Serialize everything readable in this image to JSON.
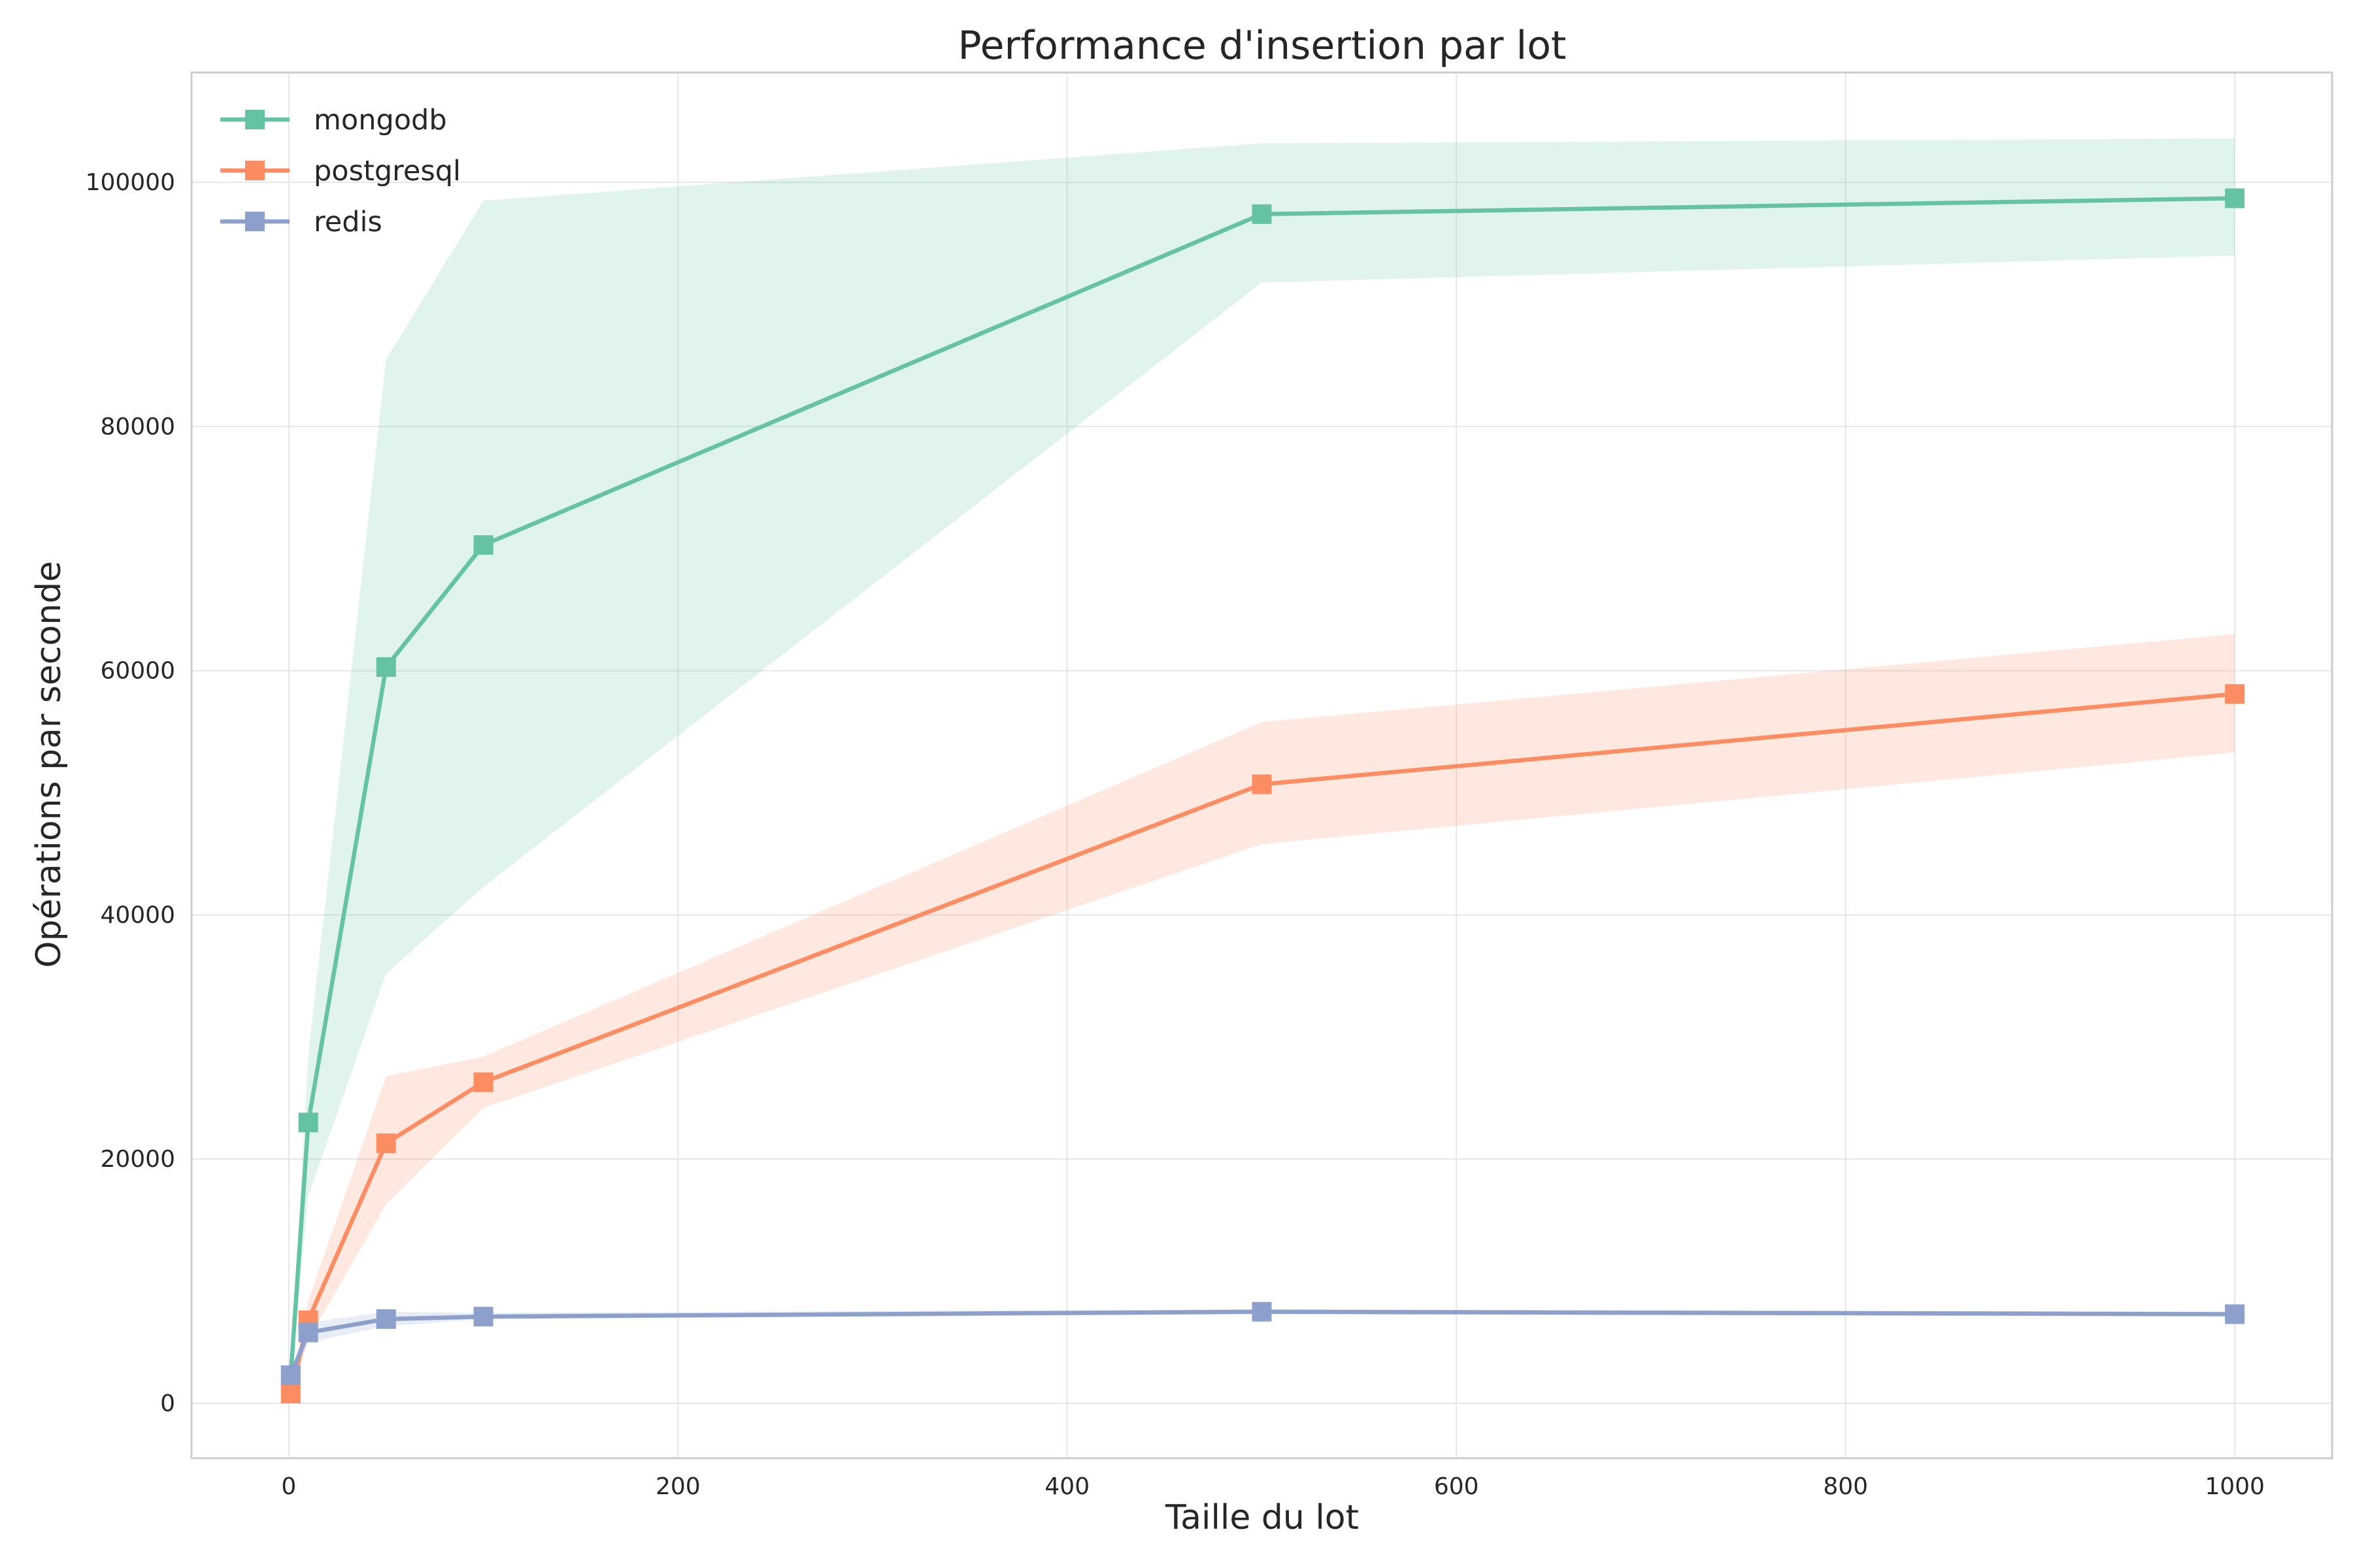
{
  "chart_data": {
    "type": "line",
    "title": "Performance d'insertion par lot",
    "xlabel": "Taille du lot",
    "ylabel": "Opérations par seconde",
    "xlim": [
      -50,
      1050
    ],
    "ylim": [
      -4500,
      109000
    ],
    "xticks": [
      0,
      200,
      400,
      600,
      800,
      1000
    ],
    "yticks": [
      0,
      20000,
      40000,
      60000,
      80000,
      100000
    ],
    "grid": true,
    "legend_position": "top-left",
    "x": [
      1,
      10,
      50,
      100,
      500,
      1000
    ],
    "series": [
      {
        "name": "mongodb",
        "color": "#66c2a5",
        "marker": "square",
        "values": [
          2300,
          23000,
          60300,
          70300,
          97400,
          98700
        ],
        "lower": [
          1500,
          17000,
          35200,
          42300,
          91800,
          94000
        ],
        "upper": [
          3100,
          28500,
          85500,
          98500,
          103200,
          103600
        ]
      },
      {
        "name": "postgresql",
        "color": "#fc8d62",
        "marker": "square",
        "values": [
          800,
          6800,
          21300,
          26300,
          50700,
          58100
        ],
        "lower": [
          300,
          5200,
          16300,
          24200,
          45800,
          53300
        ],
        "upper": [
          1300,
          8400,
          26800,
          28400,
          55800,
          63000
        ]
      },
      {
        "name": "redis",
        "color": "#8da0cb",
        "marker": "square",
        "values": [
          2300,
          5800,
          6900,
          7100,
          7500,
          7300
        ],
        "lower": [
          1900,
          5000,
          6300,
          6900,
          7300,
          7100
        ],
        "upper": [
          2700,
          6600,
          7500,
          7400,
          7700,
          7500
        ]
      }
    ]
  }
}
